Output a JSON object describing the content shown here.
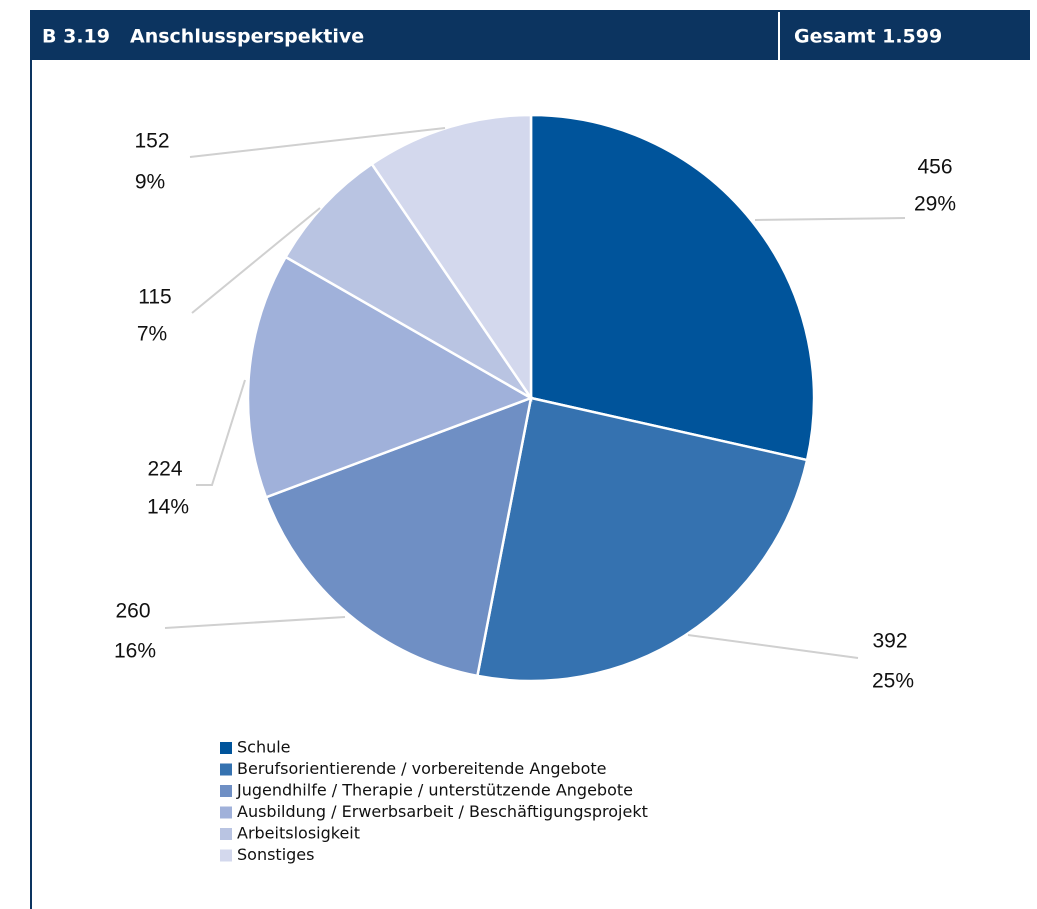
{
  "chart_data": {
    "type": "pie",
    "figure_number": "B 3.19",
    "title": "Anschlussperspektive",
    "subtitle": "Gesamt 1.599",
    "categories": [
      "Schule",
      "Berufsorientierende / vorbereitende Angebote",
      "Jugendhilfe / Therapie / unterstützende Angebote",
      "Ausbildung / Erwerbsarbeit / Beschäftigungsprojekt",
      "Arbeitslosigkeit",
      "Sonstiges"
    ],
    "values": [
      456,
      392,
      260,
      224,
      115,
      152
    ],
    "percent_labels": [
      "29%",
      "25%",
      "16%",
      "14%",
      "7%",
      "9%"
    ],
    "colors": [
      "#00549b",
      "#3572b0",
      "#6f8fc4",
      "#a0b1da",
      "#b9c4e2",
      "#d3d8ed"
    ]
  }
}
